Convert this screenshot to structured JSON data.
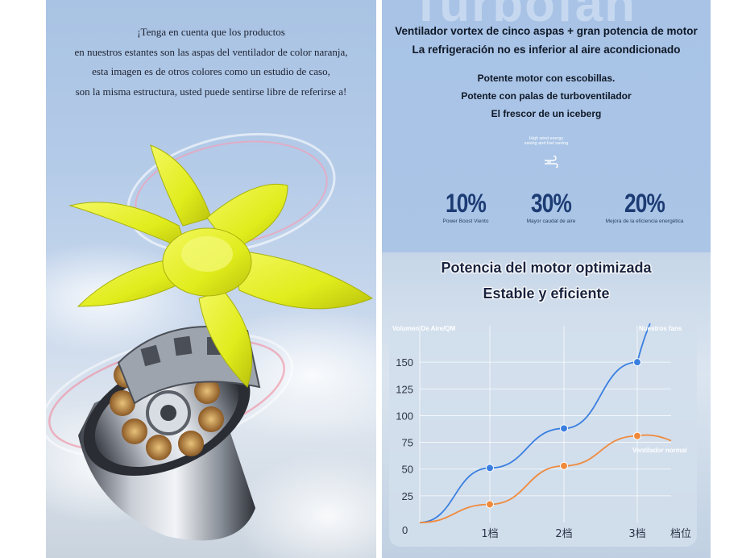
{
  "notice": {
    "lines": [
      "¡Tenga en cuenta que los productos",
      "en nuestros estantes son las aspas del ventilador de color naranja,",
      "esta imagen es de otros colores como un estudio de caso,",
      "son la misma estructura, usted puede sentirse libre de referirse a!"
    ]
  },
  "features_panel": {
    "watermark": "Turbofan",
    "headline_1": "Ventilador vortex de cinco aspas + gran potencia de motor",
    "headline_2": "La refrigeración no es inferior al aire acondicionado",
    "features": [
      "Potente motor con escobillas.",
      "Potente con palas de turboventilador",
      "El frescor de un iceberg"
    ],
    "tiny_caption_1": "High wind energy",
    "tiny_caption_2": "saving and fuel saving",
    "wind_icon": "wind-icon",
    "stats": [
      {
        "value": "10%",
        "label": "Power Boost Viento"
      },
      {
        "value": "30%",
        "label": "Mayor caudal de aire"
      },
      {
        "value": "20%",
        "label": "Mejora de la eficiencia energética"
      }
    ]
  },
  "chart_panel": {
    "title_1": "Potencia del motor optimizada",
    "title_2": "Estable y eficiente"
  },
  "chart_data": {
    "type": "line",
    "ylabel": "Volumen De Aire/QM",
    "xlabel": "档位",
    "categories": [
      "0",
      "1档",
      "2档",
      "3档"
    ],
    "yticks": [
      25,
      50,
      75,
      100,
      125,
      150
    ],
    "ylim": [
      0,
      175
    ],
    "origin_label": "0",
    "grid": true,
    "series": [
      {
        "name": "Nuestros fans",
        "color": "#3a7fe0",
        "values": [
          0,
          51,
          88,
          150
        ]
      },
      {
        "name": "Ventilador normal",
        "color": "#ef8a3c",
        "values": [
          0,
          17,
          53,
          81
        ]
      }
    ]
  },
  "colors": {
    "fan_blade": "#e4ef22",
    "stat_value": "#1d3c74",
    "left_bg": "#b4cbe8",
    "right_bg": "#a8c3e6"
  }
}
